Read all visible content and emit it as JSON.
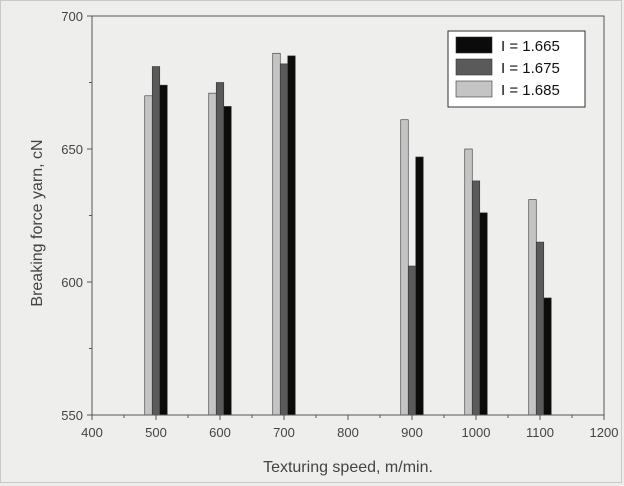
{
  "chart_data": {
    "type": "bar",
    "title": "",
    "xlabel": "Texturing speed, m/min.",
    "ylabel": "Breaking force yarn, cN",
    "xlim": [
      400,
      1200
    ],
    "ylim": [
      550,
      700
    ],
    "xticks": [
      400,
      500,
      600,
      700,
      800,
      900,
      1000,
      1100,
      1200
    ],
    "yticks": [
      550,
      600,
      650,
      700
    ],
    "categories": [
      500,
      600,
      700,
      900,
      1000,
      1100
    ],
    "series": [
      {
        "name": "I = 1.685",
        "color": "#c4c4c4",
        "values": [
          670,
          671,
          686,
          661,
          650,
          631
        ]
      },
      {
        "name": "I = 1.675",
        "color": "#5a5a5a",
        "values": [
          681,
          675,
          682,
          606,
          638,
          615
        ]
      },
      {
        "name": "I = 1.665",
        "color": "#0b0b0b",
        "values": [
          674,
          666,
          685,
          647,
          626,
          594
        ]
      }
    ],
    "legend_order": [
      "I = 1.665",
      "I = 1.675",
      "I = 1.685"
    ],
    "legend_position": "top-right",
    "grid": false
  }
}
